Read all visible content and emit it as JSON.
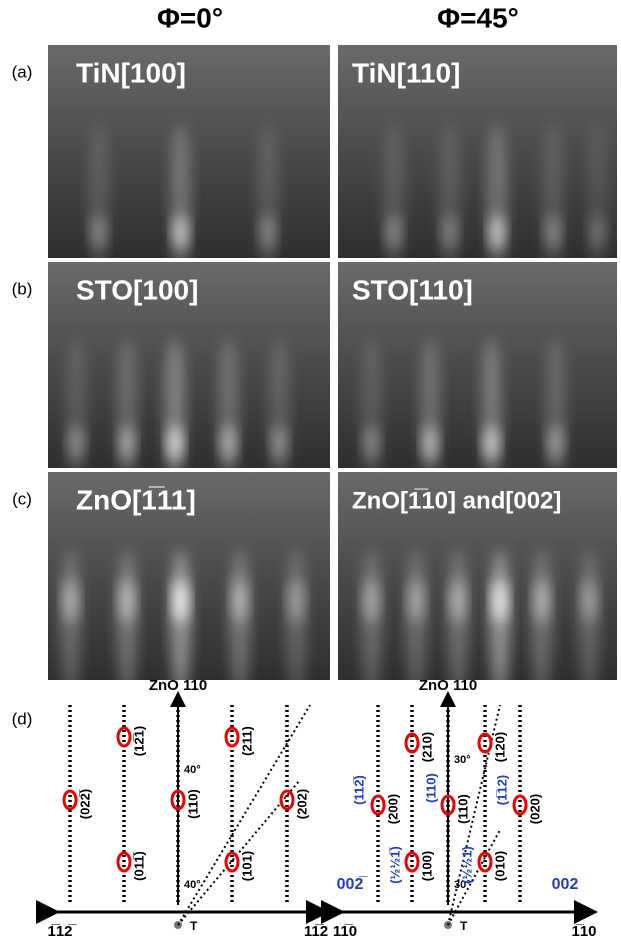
{
  "column_headers": [
    "Φ=0°",
    "Φ=45°"
  ],
  "rows": [
    {
      "label": "(a)",
      "panels": [
        "TiN[100]",
        "TiN[110]"
      ]
    },
    {
      "label": "(b)",
      "panels": [
        "STO[100]",
        "STO[110]"
      ]
    },
    {
      "label": "(c)",
      "panels": [
        "ZnO[1̅11]",
        "ZnO[1̅10] and[002]"
      ]
    }
  ],
  "diagram": {
    "label": "(d)",
    "left": {
      "axis_label": "ZnO 110",
      "angles": [
        "40°",
        "40°"
      ],
      "origin": "T",
      "x_left": "1̅12̅",
      "x_right": "11̅2",
      "spots": [
        "(12̅1)",
        "(211)",
        "(022̅)",
        "(110)",
        "(202)",
        "(011̅)",
        "(101)"
      ]
    },
    "right": {
      "axis_label": "ZnO 110",
      "angles": [
        "30°",
        "30°"
      ],
      "origin": "T",
      "x_left": "11̅0",
      "x_right": "1̅10",
      "spots": [
        "(210)",
        "(120)",
        "(200)",
        "(110)",
        "(020)",
        "(100)",
        "(010)"
      ],
      "blue_spots": [
        "(112̅)",
        "(110)",
        "(1̅12)",
        "(½½1̅)",
        "(½½1)"
      ],
      "blue_axis": [
        "002̅",
        "002"
      ]
    }
  }
}
